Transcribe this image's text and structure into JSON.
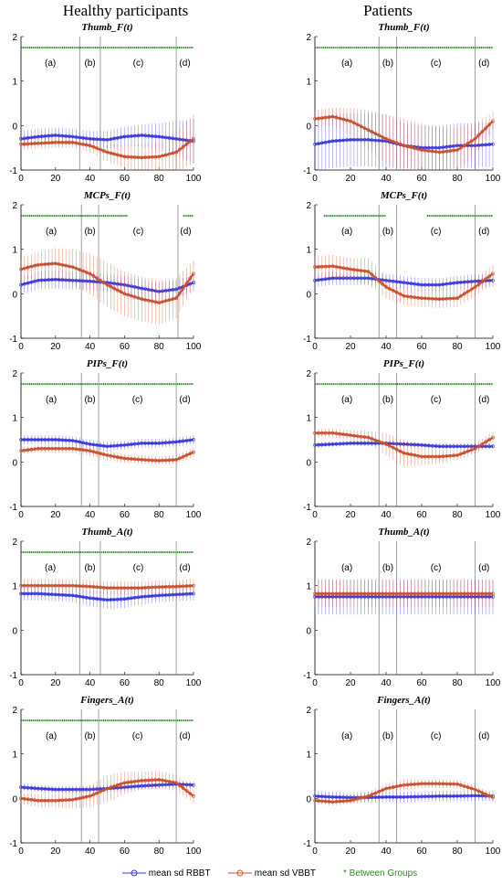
{
  "headers": {
    "left": "Healthy participants",
    "right": "Patients"
  },
  "legend": {
    "rbbt_label": "mean sd RBBT",
    "vbbt_label": "mean sd VBBT",
    "between_label": "* Between Groups",
    "colors": {
      "rbbt": "#3a3adc",
      "vbbt": "#c8502f",
      "between": "#2e8b22"
    }
  },
  "chart_data": [
    {
      "type": "line",
      "group": "Healthy participants",
      "title": "Thumb_F(t)",
      "xlim": [
        0,
        100
      ],
      "ylim": [
        -1,
        2
      ],
      "xticks": [
        0,
        20,
        40,
        60,
        80,
        100
      ],
      "yticks": [
        -1,
        0,
        1,
        2
      ],
      "phase_lines": [
        34,
        46,
        90
      ],
      "phase_labels": [
        "(a)",
        "(b)",
        "(c)",
        "(d)"
      ],
      "between_groups_y": 1.75,
      "between_groups_ranges": [
        [
          0,
          100
        ]
      ],
      "x": [
        0,
        10,
        20,
        30,
        40,
        50,
        60,
        70,
        80,
        90,
        100
      ],
      "series": [
        {
          "name": "RBBT",
          "mean": [
            -0.3,
            -0.25,
            -0.22,
            -0.25,
            -0.3,
            -0.32,
            -0.25,
            -0.22,
            -0.25,
            -0.3,
            -0.35
          ],
          "sd": [
            0.18,
            0.18,
            0.18,
            0.18,
            0.18,
            0.2,
            0.22,
            0.25,
            0.3,
            0.4,
            0.5
          ]
        },
        {
          "name": "VBBT",
          "mean": [
            -0.42,
            -0.4,
            -0.38,
            -0.38,
            -0.45,
            -0.6,
            -0.7,
            -0.72,
            -0.7,
            -0.6,
            -0.3
          ],
          "sd": [
            0.12,
            0.12,
            0.12,
            0.12,
            0.15,
            0.2,
            0.25,
            0.3,
            0.35,
            0.45,
            0.55
          ]
        }
      ]
    },
    {
      "type": "line",
      "group": "Patients",
      "title": "Thumb_F(t)",
      "xlim": [
        0,
        100
      ],
      "ylim": [
        -1,
        2
      ],
      "xticks": [
        0,
        20,
        40,
        60,
        80,
        100
      ],
      "yticks": [
        -1,
        0,
        1,
        2
      ],
      "phase_lines": [
        36,
        46,
        90
      ],
      "phase_labels": [
        "(a)",
        "(b)",
        "(c)",
        "(d)"
      ],
      "between_groups_y": 1.75,
      "between_groups_ranges": [
        [
          0,
          100
        ]
      ],
      "x": [
        0,
        10,
        20,
        30,
        40,
        50,
        60,
        70,
        80,
        90,
        100
      ],
      "series": [
        {
          "name": "RBBT",
          "mean": [
            -0.42,
            -0.35,
            -0.32,
            -0.32,
            -0.35,
            -0.45,
            -0.5,
            -0.5,
            -0.45,
            -0.45,
            -0.42
          ],
          "sd": [
            0.6,
            0.6,
            0.6,
            0.6,
            0.6,
            0.5,
            0.5,
            0.5,
            0.5,
            0.5,
            0.5
          ]
        },
        {
          "name": "VBBT",
          "mean": [
            0.15,
            0.2,
            0.1,
            -0.1,
            -0.3,
            -0.45,
            -0.55,
            -0.6,
            -0.55,
            -0.3,
            0.1
          ],
          "sd": [
            0.2,
            0.2,
            0.3,
            0.45,
            0.55,
            0.6,
            0.6,
            0.55,
            0.5,
            0.35,
            0.2
          ]
        }
      ]
    },
    {
      "type": "line",
      "group": "Healthy participants",
      "title": "MCPs_F(t)",
      "xlim": [
        0,
        100
      ],
      "ylim": [
        -1,
        2
      ],
      "xticks": [
        0,
        20,
        40,
        60,
        80,
        100
      ],
      "yticks": [
        -1,
        0,
        1,
        2
      ],
      "phase_lines": [
        35,
        45,
        91
      ],
      "phase_labels": [
        "(a)",
        "(b)",
        "(c)",
        "(d)"
      ],
      "between_groups_y": 1.75,
      "between_groups_ranges": [
        [
          0,
          62
        ],
        [
          94,
          100
        ]
      ],
      "x": [
        0,
        10,
        20,
        30,
        40,
        50,
        60,
        70,
        80,
        90,
        100
      ],
      "series": [
        {
          "name": "RBBT",
          "mean": [
            0.2,
            0.3,
            0.32,
            0.3,
            0.28,
            0.25,
            0.2,
            0.12,
            0.05,
            0.1,
            0.25
          ],
          "sd": [
            0.2,
            0.2,
            0.2,
            0.2,
            0.2,
            0.2,
            0.2,
            0.2,
            0.2,
            0.2,
            0.2
          ]
        },
        {
          "name": "VBBT",
          "mean": [
            0.55,
            0.65,
            0.68,
            0.6,
            0.45,
            0.2,
            0.0,
            -0.12,
            -0.2,
            -0.1,
            0.45
          ],
          "sd": [
            0.25,
            0.3,
            0.35,
            0.4,
            0.45,
            0.5,
            0.5,
            0.5,
            0.5,
            0.45,
            0.3
          ]
        }
      ]
    },
    {
      "type": "line",
      "group": "Patients",
      "title": "MCPs_F(t)",
      "xlim": [
        0,
        100
      ],
      "ylim": [
        -1,
        2
      ],
      "xticks": [
        0,
        20,
        40,
        60,
        80,
        100
      ],
      "yticks": [
        -1,
        0,
        1,
        2
      ],
      "phase_lines": [
        36,
        46,
        90
      ],
      "phase_labels": [
        "(a)",
        "(b)",
        "(c)",
        "(d)"
      ],
      "between_groups_y": 1.75,
      "between_groups_ranges": [
        [
          5,
          40
        ],
        [
          63,
          100
        ]
      ],
      "x": [
        0,
        10,
        20,
        30,
        40,
        50,
        60,
        70,
        80,
        90,
        100
      ],
      "series": [
        {
          "name": "RBBT",
          "mean": [
            0.3,
            0.35,
            0.35,
            0.35,
            0.3,
            0.25,
            0.2,
            0.2,
            0.25,
            0.28,
            0.3
          ],
          "sd": [
            0.15,
            0.15,
            0.15,
            0.15,
            0.15,
            0.15,
            0.15,
            0.15,
            0.15,
            0.15,
            0.15
          ]
        },
        {
          "name": "VBBT",
          "mean": [
            0.6,
            0.62,
            0.55,
            0.5,
            0.15,
            -0.05,
            -0.1,
            -0.12,
            -0.1,
            0.15,
            0.45
          ],
          "sd": [
            0.25,
            0.25,
            0.25,
            0.3,
            0.25,
            0.2,
            0.2,
            0.2,
            0.2,
            0.2,
            0.2
          ]
        }
      ]
    },
    {
      "type": "line",
      "group": "Healthy participants",
      "title": "PIPs_F(t)",
      "xlim": [
        0,
        100
      ],
      "ylim": [
        -1,
        2
      ],
      "xticks": [
        0,
        20,
        40,
        60,
        80,
        100
      ],
      "yticks": [
        -1,
        0,
        1,
        2
      ],
      "phase_lines": [
        35,
        45,
        90
      ],
      "phase_labels": [
        "(a)",
        "(b)",
        "(c)",
        "(d)"
      ],
      "between_groups_y": 1.75,
      "between_groups_ranges": [
        [
          0,
          100
        ]
      ],
      "x": [
        0,
        10,
        20,
        30,
        40,
        50,
        60,
        70,
        80,
        90,
        100
      ],
      "series": [
        {
          "name": "RBBT",
          "mean": [
            0.5,
            0.5,
            0.5,
            0.48,
            0.4,
            0.35,
            0.38,
            0.42,
            0.42,
            0.45,
            0.5
          ],
          "sd": [
            0.1,
            0.1,
            0.1,
            0.1,
            0.1,
            0.1,
            0.1,
            0.1,
            0.1,
            0.1,
            0.1
          ]
        },
        {
          "name": "VBBT",
          "mean": [
            0.25,
            0.3,
            0.3,
            0.3,
            0.25,
            0.15,
            0.08,
            0.05,
            0.03,
            0.05,
            0.22
          ],
          "sd": [
            0.08,
            0.08,
            0.1,
            0.1,
            0.12,
            0.12,
            0.1,
            0.1,
            0.1,
            0.1,
            0.1
          ]
        }
      ]
    },
    {
      "type": "line",
      "group": "Patients",
      "title": "PIPs_F(t)",
      "xlim": [
        0,
        100
      ],
      "ylim": [
        -1,
        2
      ],
      "xticks": [
        0,
        20,
        40,
        60,
        80,
        100
      ],
      "yticks": [
        -1,
        0,
        1,
        2
      ],
      "phase_lines": [
        36,
        46,
        90
      ],
      "phase_labels": [
        "(a)",
        "(b)",
        "(c)",
        "(d)"
      ],
      "between_groups_y": 1.75,
      "between_groups_ranges": [
        [
          0,
          100
        ]
      ],
      "x": [
        0,
        10,
        20,
        30,
        40,
        50,
        60,
        70,
        80,
        90,
        100
      ],
      "series": [
        {
          "name": "RBBT",
          "mean": [
            0.38,
            0.4,
            0.42,
            0.42,
            0.42,
            0.4,
            0.38,
            0.35,
            0.35,
            0.35,
            0.35
          ],
          "sd": [
            0.06,
            0.06,
            0.06,
            0.06,
            0.06,
            0.06,
            0.06,
            0.06,
            0.06,
            0.06,
            0.06
          ]
        },
        {
          "name": "VBBT",
          "mean": [
            0.65,
            0.65,
            0.6,
            0.55,
            0.4,
            0.2,
            0.12,
            0.12,
            0.15,
            0.3,
            0.55
          ],
          "sd": [
            0.1,
            0.1,
            0.12,
            0.15,
            0.25,
            0.3,
            0.2,
            0.15,
            0.12,
            0.12,
            0.12
          ]
        }
      ]
    },
    {
      "type": "line",
      "group": "Healthy participants",
      "title": "Thumb_A(t)",
      "xlim": [
        0,
        100
      ],
      "ylim": [
        -1,
        2
      ],
      "xticks": [
        0,
        20,
        40,
        60,
        80,
        100
      ],
      "yticks": [
        -1,
        0,
        1,
        2
      ],
      "phase_lines": [
        34,
        46,
        90
      ],
      "phase_labels": [
        "(a)",
        "(b)",
        "(c)",
        "(d)"
      ],
      "between_groups_y": 1.75,
      "between_groups_ranges": [
        [
          0,
          100
        ]
      ],
      "x": [
        0,
        10,
        20,
        30,
        40,
        50,
        60,
        70,
        80,
        90,
        100
      ],
      "series": [
        {
          "name": "RBBT",
          "mean": [
            0.82,
            0.82,
            0.8,
            0.78,
            0.72,
            0.68,
            0.7,
            0.75,
            0.78,
            0.8,
            0.82
          ],
          "sd": [
            0.15,
            0.15,
            0.15,
            0.15,
            0.18,
            0.2,
            0.2,
            0.18,
            0.15,
            0.15,
            0.15
          ]
        },
        {
          "name": "VBBT",
          "mean": [
            1.0,
            1.0,
            1.0,
            1.0,
            0.98,
            0.95,
            0.95,
            0.95,
            0.97,
            0.98,
            1.0
          ],
          "sd": [
            0.15,
            0.15,
            0.15,
            0.15,
            0.15,
            0.15,
            0.15,
            0.15,
            0.15,
            0.15,
            0.15
          ]
        }
      ]
    },
    {
      "type": "line",
      "group": "Patients",
      "title": "Thumb_A(t)",
      "xlim": [
        0,
        100
      ],
      "ylim": [
        -1,
        2
      ],
      "xticks": [
        0,
        20,
        40,
        60,
        80,
        100
      ],
      "yticks": [
        -1,
        0,
        1,
        2
      ],
      "phase_lines": [
        36,
        46,
        90
      ],
      "phase_labels": [
        "(a)",
        "(b)",
        "(c)",
        "(d)"
      ],
      "between_groups_y": null,
      "between_groups_ranges": [],
      "x": [
        0,
        10,
        20,
        30,
        40,
        50,
        60,
        70,
        80,
        90,
        100
      ],
      "series": [
        {
          "name": "RBBT",
          "mean": [
            0.75,
            0.75,
            0.75,
            0.75,
            0.75,
            0.75,
            0.75,
            0.75,
            0.75,
            0.75,
            0.75
          ],
          "sd": [
            0.4,
            0.4,
            0.4,
            0.4,
            0.4,
            0.4,
            0.4,
            0.4,
            0.4,
            0.4,
            0.4
          ]
        },
        {
          "name": "VBBT",
          "mean": [
            0.82,
            0.82,
            0.82,
            0.82,
            0.82,
            0.82,
            0.82,
            0.82,
            0.82,
            0.82,
            0.82
          ],
          "sd": [
            0.3,
            0.3,
            0.3,
            0.3,
            0.3,
            0.3,
            0.3,
            0.3,
            0.3,
            0.3,
            0.3
          ]
        }
      ]
    },
    {
      "type": "line",
      "group": "Healthy participants",
      "title": "Fingers_A(t)",
      "xlim": [
        0,
        100
      ],
      "ylim": [
        -1,
        2
      ],
      "xticks": [
        0,
        20,
        40,
        60,
        80,
        100
      ],
      "yticks": [
        -1,
        0,
        1,
        2
      ],
      "phase_lines": [
        35,
        45,
        90
      ],
      "phase_labels": [
        "(a)",
        "(b)",
        "(c)",
        "(d)"
      ],
      "between_groups_y": 1.75,
      "between_groups_ranges": [
        [
          0,
          100
        ]
      ],
      "x": [
        0,
        10,
        20,
        30,
        40,
        50,
        60,
        70,
        80,
        90,
        100
      ],
      "series": [
        {
          "name": "RBBT",
          "mean": [
            0.25,
            0.22,
            0.2,
            0.2,
            0.2,
            0.22,
            0.25,
            0.28,
            0.3,
            0.32,
            0.3
          ],
          "sd": [
            0.08,
            0.08,
            0.08,
            0.08,
            0.08,
            0.08,
            0.08,
            0.08,
            0.08,
            0.08,
            0.08
          ]
        },
        {
          "name": "VBBT",
          "mean": [
            0.0,
            -0.05,
            -0.05,
            -0.03,
            0.05,
            0.22,
            0.35,
            0.4,
            0.42,
            0.35,
            0.05
          ],
          "sd": [
            0.12,
            0.15,
            0.15,
            0.2,
            0.25,
            0.3,
            0.25,
            0.2,
            0.2,
            0.18,
            0.15
          ]
        }
      ]
    },
    {
      "type": "line",
      "group": "Patients",
      "title": "Fingers_A(t)",
      "xlim": [
        0,
        100
      ],
      "ylim": [
        -1,
        2
      ],
      "xticks": [
        0,
        20,
        40,
        60,
        80,
        100
      ],
      "yticks": [
        -1,
        0,
        1,
        2
      ],
      "phase_lines": [
        36,
        46,
        90
      ],
      "phase_labels": [
        "(a)",
        "(b)",
        "(c)",
        "(d)"
      ],
      "between_groups_y": null,
      "between_groups_ranges": [],
      "x": [
        0,
        10,
        20,
        30,
        40,
        50,
        60,
        70,
        80,
        90,
        100
      ],
      "series": [
        {
          "name": "RBBT",
          "mean": [
            0.05,
            0.03,
            0.02,
            0.02,
            0.03,
            0.03,
            0.04,
            0.05,
            0.05,
            0.06,
            0.05
          ],
          "sd": [
            0.12,
            0.12,
            0.12,
            0.12,
            0.12,
            0.12,
            0.12,
            0.12,
            0.12,
            0.12,
            0.12
          ]
        },
        {
          "name": "VBBT",
          "mean": [
            -0.05,
            -0.08,
            -0.05,
            0.05,
            0.22,
            0.3,
            0.33,
            0.33,
            0.32,
            0.2,
            0.02
          ],
          "sd": [
            0.08,
            0.08,
            0.08,
            0.1,
            0.12,
            0.12,
            0.1,
            0.1,
            0.1,
            0.1,
            0.08
          ]
        }
      ]
    }
  ]
}
